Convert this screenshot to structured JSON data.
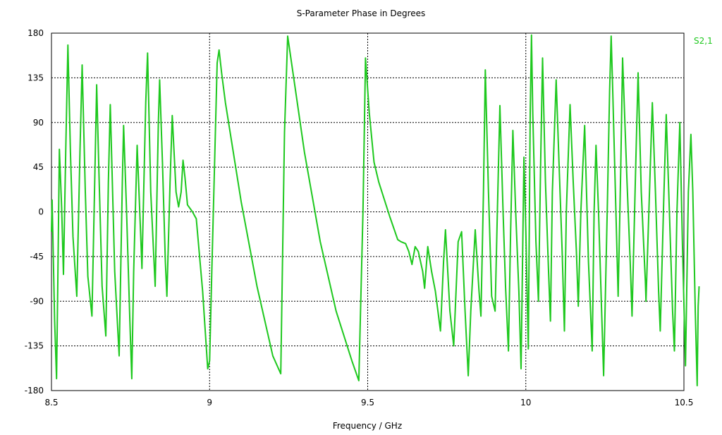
{
  "chart_data": {
    "type": "line",
    "title": "S-Parameter Phase in Degrees",
    "xlabel": "Frequency / GHz",
    "ylabel": "",
    "xlim": [
      8.5,
      10.5
    ],
    "ylim": [
      -180,
      180
    ],
    "x_ticks": [
      "8.5",
      "9",
      "9.5",
      "10",
      "10.5"
    ],
    "y_ticks": [
      "180",
      "135",
      "90",
      "45",
      "0",
      "-45",
      "-90",
      "-135",
      "-180"
    ],
    "grid": true,
    "legend_position": "right",
    "series": [
      {
        "name": "S2,1",
        "color": "#1ec81e",
        "points": [
          [
            8.5,
            -20
          ],
          [
            8.502,
            12
          ],
          [
            8.51,
            -110
          ],
          [
            8.516,
            -168
          ],
          [
            8.52,
            -70
          ],
          [
            8.525,
            63
          ],
          [
            8.532,
            5
          ],
          [
            8.538,
            -63
          ],
          [
            8.545,
            60
          ],
          [
            8.552,
            168
          ],
          [
            8.56,
            60
          ],
          [
            8.568,
            -25
          ],
          [
            8.58,
            -85
          ],
          [
            8.59,
            60
          ],
          [
            8.597,
            148
          ],
          [
            8.607,
            20
          ],
          [
            8.615,
            -65
          ],
          [
            8.628,
            -105
          ],
          [
            8.638,
            50
          ],
          [
            8.643,
            128
          ],
          [
            8.65,
            40
          ],
          [
            8.66,
            -75
          ],
          [
            8.672,
            -125
          ],
          [
            8.68,
            30
          ],
          [
            8.686,
            108
          ],
          [
            8.7,
            -60
          ],
          [
            8.714,
            -145
          ],
          [
            8.724,
            30
          ],
          [
            8.728,
            87
          ],
          [
            8.737,
            5
          ],
          [
            8.748,
            -110
          ],
          [
            8.754,
            -168
          ],
          [
            8.76,
            -60
          ],
          [
            8.771,
            67
          ],
          [
            8.783,
            -30
          ],
          [
            8.786,
            -57
          ],
          [
            8.798,
            110
          ],
          [
            8.804,
            160
          ],
          [
            8.814,
            20
          ],
          [
            8.828,
            -75
          ],
          [
            8.838,
            90
          ],
          [
            8.842,
            133
          ],
          [
            8.851,
            50
          ],
          [
            8.86,
            -50
          ],
          [
            8.865,
            -85
          ],
          [
            8.875,
            30
          ],
          [
            8.882,
            97
          ],
          [
            8.894,
            20
          ],
          [
            8.902,
            5
          ],
          [
            8.91,
            20
          ],
          [
            8.916,
            52
          ],
          [
            8.922,
            35
          ],
          [
            8.93,
            7
          ],
          [
            8.946,
            0
          ],
          [
            8.958,
            -7
          ],
          [
            8.978,
            -80
          ],
          [
            8.994,
            -158
          ],
          [
            9.0,
            -150
          ],
          [
            9.007,
            -60
          ],
          [
            9.024,
            150
          ],
          [
            9.03,
            163
          ],
          [
            9.038,
            140
          ],
          [
            9.05,
            110
          ],
          [
            9.1,
            10
          ],
          [
            9.15,
            -75
          ],
          [
            9.2,
            -145
          ],
          [
            9.225,
            -163
          ],
          [
            9.237,
            80
          ],
          [
            9.247,
            177
          ],
          [
            9.3,
            60
          ],
          [
            9.35,
            -30
          ],
          [
            9.4,
            -100
          ],
          [
            9.45,
            -150
          ],
          [
            9.472,
            -170
          ],
          [
            9.485,
            0
          ],
          [
            9.493,
            155
          ],
          [
            9.505,
            100
          ],
          [
            9.52,
            50
          ],
          [
            9.535,
            30
          ],
          [
            9.57,
            -5
          ],
          [
            9.595,
            -28
          ],
          [
            9.605,
            -30
          ],
          [
            9.62,
            -32
          ],
          [
            9.63,
            -40
          ],
          [
            9.64,
            -53
          ],
          [
            9.65,
            -35
          ],
          [
            9.66,
            -40
          ],
          [
            9.674,
            -60
          ],
          [
            9.68,
            -77
          ],
          [
            9.69,
            -35
          ],
          [
            9.702,
            -60
          ],
          [
            9.714,
            -80
          ],
          [
            9.73,
            -120
          ],
          [
            9.74,
            -50
          ],
          [
            9.746,
            -18
          ],
          [
            9.76,
            -100
          ],
          [
            9.772,
            -135
          ],
          [
            9.786,
            -30
          ],
          [
            9.797,
            -20
          ],
          [
            9.808,
            -100
          ],
          [
            9.818,
            -165
          ],
          [
            9.826,
            -100
          ],
          [
            9.84,
            -18
          ],
          [
            9.852,
            -80
          ],
          [
            9.858,
            -105
          ],
          [
            9.866,
            20
          ],
          [
            9.872,
            143
          ],
          [
            9.882,
            20
          ],
          [
            9.892,
            -85
          ],
          [
            9.903,
            -100
          ],
          [
            9.91,
            0
          ],
          [
            9.918,
            107
          ],
          [
            9.928,
            0
          ],
          [
            9.936,
            -75
          ],
          [
            9.945,
            -140
          ],
          [
            9.952,
            -20
          ],
          [
            9.959,
            82
          ],
          [
            9.968,
            0
          ],
          [
            9.978,
            -80
          ],
          [
            9.985,
            -158
          ],
          [
            9.99,
            -40
          ],
          [
            9.994,
            55
          ],
          [
            10.0,
            -20
          ],
          [
            10.008,
            -138
          ],
          [
            10.014,
            100
          ],
          [
            10.018,
            178
          ],
          [
            10.022,
            100
          ],
          [
            10.032,
            -30
          ],
          [
            10.04,
            -90
          ],
          [
            10.047,
            50
          ],
          [
            10.053,
            155
          ],
          [
            10.062,
            30
          ],
          [
            10.072,
            -60
          ],
          [
            10.078,
            -110
          ],
          [
            10.084,
            20
          ],
          [
            10.096,
            133
          ],
          [
            10.105,
            50
          ],
          [
            10.115,
            -40
          ],
          [
            10.122,
            -120
          ],
          [
            10.128,
            0
          ],
          [
            10.14,
            108
          ],
          [
            10.15,
            30
          ],
          [
            10.16,
            -40
          ],
          [
            10.166,
            -95
          ],
          [
            10.174,
            0
          ],
          [
            10.186,
            87
          ],
          [
            10.198,
            -50
          ],
          [
            10.21,
            -140
          ],
          [
            10.216,
            0
          ],
          [
            10.222,
            67
          ],
          [
            10.23,
            0
          ],
          [
            10.246,
            -165
          ],
          [
            10.258,
            10
          ],
          [
            10.265,
            122
          ],
          [
            10.27,
            177
          ],
          [
            10.275,
            120
          ],
          [
            10.292,
            -85
          ],
          [
            10.3,
            40
          ],
          [
            10.306,
            155
          ],
          [
            10.32,
            30
          ],
          [
            10.33,
            -50
          ],
          [
            10.336,
            -105
          ],
          [
            10.347,
            40
          ],
          [
            10.355,
            140
          ],
          [
            10.365,
            20
          ],
          [
            10.378,
            -70
          ],
          [
            10.38,
            -90
          ],
          [
            10.392,
            30
          ],
          [
            10.4,
            110
          ],
          [
            10.41,
            20
          ],
          [
            10.42,
            -80
          ],
          [
            10.425,
            -120
          ],
          [
            10.436,
            10
          ],
          [
            10.444,
            98
          ],
          [
            10.454,
            0
          ],
          [
            10.464,
            -100
          ],
          [
            10.47,
            -140
          ],
          [
            10.478,
            0
          ],
          [
            10.487,
            90
          ],
          [
            10.495,
            -30
          ],
          [
            10.505,
            -155
          ],
          [
            10.514,
            20
          ],
          [
            10.522,
            78
          ],
          [
            10.528,
            20
          ],
          [
            10.536,
            -100
          ],
          [
            10.542,
            -175
          ],
          [
            10.545,
            -95
          ],
          [
            10.548,
            -75
          ]
        ]
      }
    ]
  }
}
